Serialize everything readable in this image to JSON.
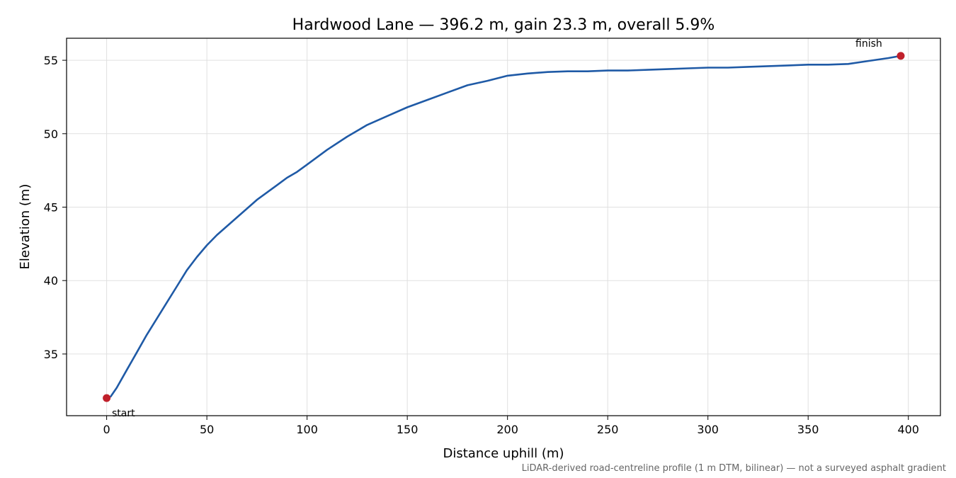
{
  "chart_data": {
    "type": "line",
    "title": "Hardwood Lane — 396.2 m, gain 23.3 m, overall 5.9%",
    "xlabel": "Distance uphill (m)",
    "ylabel": "Elevation (m)",
    "xlim": [
      -20,
      416
    ],
    "ylim": [
      30.8,
      56.5
    ],
    "xticks": [
      0,
      50,
      100,
      150,
      200,
      250,
      300,
      350,
      400
    ],
    "yticks": [
      35,
      40,
      45,
      50,
      55
    ],
    "grid": true,
    "line_color": "#1f5aa6",
    "marker_color": "#c0202b",
    "series": [
      {
        "x": [
          0,
          2,
          5,
          10,
          15,
          20,
          25,
          30,
          35,
          40,
          45,
          50,
          55,
          60,
          65,
          70,
          75,
          80,
          85,
          90,
          95,
          100,
          110,
          120,
          130,
          140,
          150,
          160,
          170,
          180,
          190,
          200,
          210,
          220,
          230,
          240,
          250,
          260,
          270,
          280,
          290,
          300,
          310,
          320,
          330,
          340,
          350,
          360,
          370,
          380,
          390,
          396.2
        ],
        "y": [
          32.0,
          32.1,
          32.7,
          33.9,
          35.1,
          36.3,
          37.4,
          38.5,
          39.6,
          40.7,
          41.6,
          42.4,
          43.1,
          43.7,
          44.3,
          44.9,
          45.5,
          46.0,
          46.5,
          47.0,
          47.4,
          47.9,
          48.9,
          49.8,
          50.6,
          51.2,
          51.8,
          52.3,
          52.8,
          53.3,
          53.6,
          53.95,
          54.1,
          54.2,
          54.25,
          54.25,
          54.3,
          54.3,
          54.35,
          54.4,
          54.45,
          54.5,
          54.5,
          54.55,
          54.6,
          54.65,
          54.7,
          54.7,
          54.75,
          54.95,
          55.15,
          55.3
        ]
      }
    ],
    "annotations": [
      {
        "label": "start",
        "x": 0,
        "y": 32.0
      },
      {
        "label": "finish",
        "x": 396.2,
        "y": 55.3
      }
    ],
    "note": "LiDAR-derived road-centreline profile (1 m DTM, bilinear) — not a surveyed asphalt gradient"
  }
}
